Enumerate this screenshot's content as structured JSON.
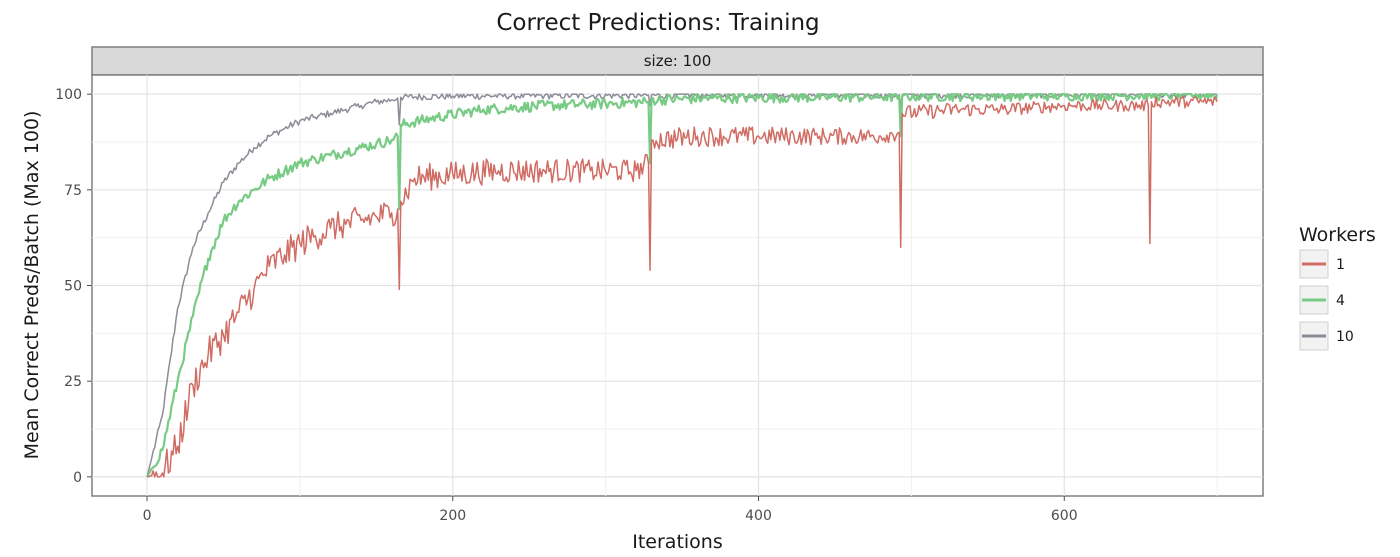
{
  "chart_data": {
    "type": "line",
    "title": "Correct Predictions: Training",
    "facet_label": "size: 100",
    "xlabel": "Iterations",
    "ylabel": "Mean Correct Preds/Batch (Max 100)",
    "xlim": [
      -36,
      730
    ],
    "ylim": [
      -5,
      105
    ],
    "x_ticks": [
      0,
      200,
      400,
      600
    ],
    "y_ticks": [
      0,
      25,
      50,
      75,
      100
    ],
    "grid": true,
    "legend_title": "Workers",
    "legend_position": "right",
    "series": [
      {
        "name": "1",
        "color": "#d06c64",
        "points": [
          [
            0,
            0
          ],
          [
            10,
            1
          ],
          [
            20,
            8
          ],
          [
            30,
            24
          ],
          [
            40,
            32
          ],
          [
            50,
            37
          ],
          [
            60,
            43
          ],
          [
            70,
            49
          ],
          [
            80,
            55
          ],
          [
            90,
            58
          ],
          [
            100,
            61
          ],
          [
            110,
            63
          ],
          [
            120,
            65
          ],
          [
            130,
            66
          ],
          [
            140,
            67
          ],
          [
            150,
            68
          ],
          [
            160,
            69
          ],
          [
            164,
            70
          ],
          [
            165,
            49
          ],
          [
            166,
            72
          ],
          [
            175,
            78
          ],
          [
            200,
            79
          ],
          [
            230,
            80
          ],
          [
            260,
            80
          ],
          [
            290,
            80
          ],
          [
            320,
            80
          ],
          [
            328,
            82
          ],
          [
            329,
            54
          ],
          [
            330,
            88
          ],
          [
            360,
            89
          ],
          [
            400,
            89
          ],
          [
            440,
            89
          ],
          [
            480,
            89
          ],
          [
            492,
            90
          ],
          [
            493,
            60
          ],
          [
            494,
            95
          ],
          [
            530,
            96
          ],
          [
            560,
            96
          ],
          [
            600,
            97
          ],
          [
            640,
            97
          ],
          [
            655,
            97
          ],
          [
            656,
            61
          ],
          [
            657,
            98
          ],
          [
            680,
            98
          ],
          [
            700,
            98
          ]
        ]
      },
      {
        "name": "4",
        "color": "#78cb84",
        "points": [
          [
            0,
            0
          ],
          [
            10,
            7
          ],
          [
            20,
            25
          ],
          [
            30,
            42
          ],
          [
            40,
            57
          ],
          [
            50,
            67
          ],
          [
            60,
            72
          ],
          [
            70,
            75
          ],
          [
            80,
            78
          ],
          [
            90,
            80
          ],
          [
            100,
            82
          ],
          [
            110,
            83
          ],
          [
            120,
            84
          ],
          [
            130,
            85
          ],
          [
            140,
            86
          ],
          [
            150,
            87
          ],
          [
            160,
            88
          ],
          [
            164,
            89
          ],
          [
            165,
            70
          ],
          [
            166,
            92
          ],
          [
            190,
            94
          ],
          [
            220,
            96
          ],
          [
            260,
            97
          ],
          [
            300,
            97.5
          ],
          [
            328,
            98
          ],
          [
            329,
            82
          ],
          [
            330,
            98.5
          ],
          [
            370,
            99
          ],
          [
            420,
            99.2
          ],
          [
            480,
            99.3
          ],
          [
            492,
            99.4
          ],
          [
            493,
            89
          ],
          [
            494,
            99.5
          ],
          [
            560,
            99.6
          ],
          [
            620,
            99.7
          ],
          [
            700,
            99.8
          ]
        ]
      },
      {
        "name": "10",
        "color": "#8c8c98",
        "points": [
          [
            0,
            0
          ],
          [
            10,
            16
          ],
          [
            20,
            44
          ],
          [
            30,
            60
          ],
          [
            40,
            69
          ],
          [
            50,
            77
          ],
          [
            60,
            82
          ],
          [
            70,
            86
          ],
          [
            80,
            89
          ],
          [
            90,
            91
          ],
          [
            100,
            93
          ],
          [
            110,
            94
          ],
          [
            120,
            95
          ],
          [
            130,
            96
          ],
          [
            140,
            97
          ],
          [
            150,
            98
          ],
          [
            160,
            98.5
          ],
          [
            164,
            99
          ],
          [
            165,
            92
          ],
          [
            166,
            99.2
          ],
          [
            200,
            99.5
          ],
          [
            260,
            99.6
          ],
          [
            328,
            99.7
          ],
          [
            329,
            97
          ],
          [
            330,
            99.7
          ],
          [
            400,
            99.8
          ],
          [
            492,
            99.8
          ],
          [
            493,
            97
          ],
          [
            494,
            99.8
          ],
          [
            600,
            99.9
          ],
          [
            700,
            99.9
          ]
        ]
      }
    ]
  }
}
